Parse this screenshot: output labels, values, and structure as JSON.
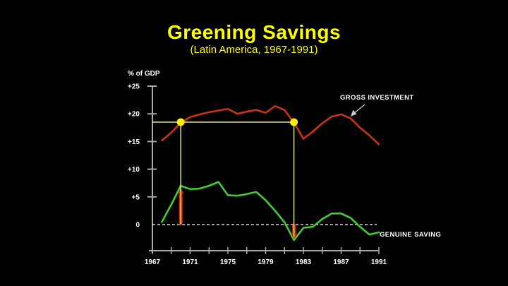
{
  "slide": {
    "title": "Greening Savings",
    "subtitle": "(Latin America, 1967-1991)"
  },
  "chart_data": {
    "type": "line",
    "title": "Greening Savings",
    "subtitle": "(Latin America, 1967-1991)",
    "background_color": "#000000",
    "y_axis": {
      "title": "% of GDP",
      "ticks": [
        25,
        20,
        15,
        10,
        5,
        0
      ],
      "tick_labels": [
        "+25",
        "+20",
        "+15",
        "+10",
        "+5",
        "0"
      ],
      "range": [
        -4.7,
        25
      ]
    },
    "x_axis": {
      "range": [
        1967,
        1991
      ],
      "minor_tick_step": 2,
      "labeled_ticks": [
        1967,
        1971,
        1975,
        1979,
        1983,
        1987,
        1991
      ]
    },
    "zero_line": {
      "style": "dashed",
      "color": "#ffffff",
      "value": 0
    },
    "x": [
      1968,
      1969,
      1970,
      1971,
      1972,
      1973,
      1974,
      1975,
      1976,
      1977,
      1978,
      1979,
      1980,
      1981,
      1982,
      1983,
      1984,
      1985,
      1986,
      1987,
      1988,
      1989,
      1990,
      1991
    ],
    "series": [
      {
        "name": "GROSS INVESTMENT",
        "color": "#cc3311",
        "values": [
          15.2,
          16.6,
          18.4,
          19.4,
          19.9,
          20.3,
          20.6,
          20.9,
          20.0,
          20.4,
          20.7,
          20.2,
          21.4,
          20.7,
          18.4,
          15.5,
          16.8,
          18.3,
          19.5,
          19.9,
          19.2,
          17.5,
          16.1,
          14.5
        ]
      },
      {
        "name": "GENUINE SAVING",
        "color": "#44cc33",
        "values": [
          0.5,
          3.6,
          7.0,
          6.4,
          6.5,
          7.0,
          7.7,
          5.3,
          5.2,
          5.5,
          5.9,
          4.4,
          2.5,
          0.4,
          -2.8,
          -0.6,
          -0.4,
          1.0,
          2.0,
          2.0,
          1.2,
          -0.4,
          -1.8,
          -1.4
        ]
      }
    ],
    "annotations": {
      "level_line": {
        "value": 18.5,
        "from_year": 1967,
        "to_year": 1982,
        "color": "#ffff99"
      },
      "dots": [
        {
          "year": 1970,
          "value": 18.5
        },
        {
          "year": 1982,
          "value": 18.5
        }
      ],
      "dot_color": "#ffee00",
      "drop_lines": [
        {
          "year": 1970,
          "from": 18.5,
          "to": 0
        },
        {
          "year": 1982,
          "from": 18.5,
          "to": -2.2
        }
      ],
      "arrows": [
        {
          "year": 1970,
          "from": 0,
          "to": 6.6,
          "color": "#dd2200"
        },
        {
          "year": 1982,
          "from": 0,
          "to": -2.6,
          "color": "#dd2200"
        }
      ],
      "pointer_color": "#cccccc"
    }
  }
}
